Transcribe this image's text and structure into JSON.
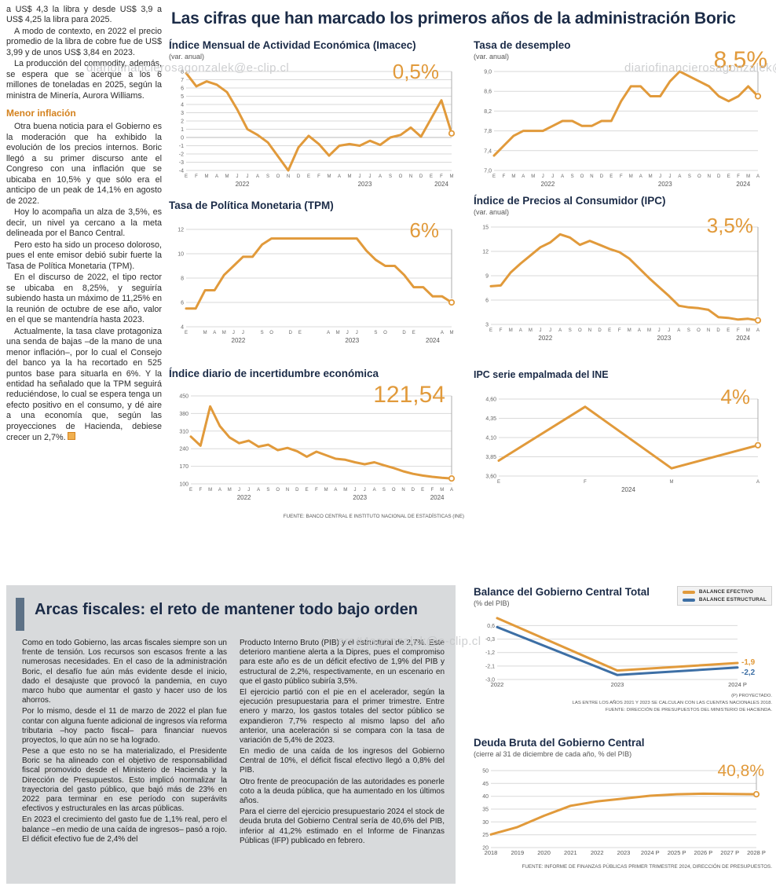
{
  "watermarks": [
    "diariofinancierosagonzalek@e-clip.cl",
    "diariofinancierosagonzalek@e-clip.cl",
    "ero#4agonzalek@e-clip.cl"
  ],
  "left_column": {
    "paragraphs": [
      "a US$ 4,3 la libra y desde US$ 3,9 a US$ 4,25 la libra para 2025.",
      "A modo de contexto, en 2022 el precio promedio de la libra de cobre fue de US$ 3,99 y de unos US$ 3,84 en 2023.",
      "La producción del commodity, además, se espera que se acerque a los 6 millones de toneladas en 2025, según la ministra de Minería, Aurora Williams."
    ],
    "subhead": "Menor inflación",
    "paragraphs2": [
      "Otra buena noticia para el Gobierno es la moderación que ha exhibido la evolución de los precios internos. Boric llegó a su primer discurso ante el Congreso con una inflación que se ubicaba en 10,5% y que sólo era el anticipo de un peak de 14,1% en agosto de 2022.",
      "Hoy lo acompaña un alza de 3,5%, es decir, un nivel ya cercano a la meta delineada por el Banco Central.",
      "Pero esto ha sido un proceso doloroso, pues el ente emisor debió subir fuerte la Tasa de Política Monetaria (TPM).",
      "En el discurso de 2022, el tipo rector se ubicaba en 8,25%, y seguiría subiendo hasta un máximo de 11,25% en la reunión de octubre de ese año, valor en el que se mantendría hasta 2023.",
      "Actualmente, la tasa clave protagoniza una senda de bajas –de la mano de una menor inflación–, por lo cual el Consejo del banco ya la ha recortado en 525 puntos base para situarla en 6%. Y la entidad ha señalado que la TPM seguirá reduciéndose, lo cual se espera tenga un efecto positivo en el consumo, y dé aire a una economía que, según las proyecciones de Hacienda, debiese crecer un 2,7%."
    ]
  },
  "main": {
    "headline": "Las cifras que han marcado los primeros años de la administración Boric",
    "source_ine": "FUENTE: BANCO CENTRAL E INSTITUTO NACIONAL DE ESTADÍSTICAS (INE)"
  },
  "fiscal": {
    "title": "Arcas fiscales: el reto de mantener todo bajo orden",
    "col1": [
      "Como en todo Gobierno, las arcas fiscales siempre son un frente de tensión. Los recursos son escasos frente a las numerosas necesidades. En el caso de la administración Boric, el desafío fue aún más evidente desde el inicio, dado el desajuste que provocó la pandemia, en cuyo marco hubo que aumentar el gasto y hacer uso de los ahorros.",
      "Por lo mismo, desde el 11 de marzo de 2022 el plan fue contar con alguna fuente adicional de ingresos vía reforma tributaria –hoy pacto fiscal– para financiar nuevos proyectos, lo que aún no se ha logrado.",
      "Pese a que esto no se ha materializado, el Presidente Boric se ha alineado con el objetivo de responsabilidad fiscal promovido desde el Ministerio de Hacienda y la Dirección de Presupuestos. Esto implicó normalizar la trayectoria del gasto público, que bajó más de 23% en 2022 para terminar en ese período con superávits efectivos y estructurales en las arcas públicas.",
      "En 2023 el crecimiento del gasto fue de 1,1% real, pero el balance –en medio de una caída de ingresos– pasó a rojo. El déficit efectivo fue de 2,4% del"
    ],
    "col2": [
      "Producto Interno Bruto (PIB) y el estructural de 2,7%. Este deterioro mantiene alerta a la Dipres, pues el compromiso para este año es de un déficit efectivo de 1,9% del PIB y estructural de 2,2%, respectivamente, en un escenario en que el gasto público subiría 3,5%.",
      "El ejercicio partió con el pie en el acelerador, según la ejecución presupuestaria para el primer trimestre. Entre enero y marzo, los gastos totales del sector público se expandieron 7,7% respecto al mismo lapso del año anterior, una aceleración si se compara con la tasa de variación de 5,4% de 2023.",
      "En medio de una caída de los ingresos del Gobierno Central de 10%, el déficit fiscal efectivo llegó a 0,8% del PIB.",
      "Otro frente de preocupación de las autoridades es ponerle coto a la deuda pública, que ha aumentado en los últimos años.",
      "Para el cierre del ejercicio presupuestario 2024 el stock de deuda bruta del Gobierno Central sería de 40,6% del PIB, inferior al 41,2% estimado en el Informe de Finanzas Públicas (IFP) publicado en febrero."
    ]
  },
  "chart_data": [
    {
      "type": "line",
      "title": "Índice Mensual de Actividad Económica (Imacec)",
      "subtitle": "(var. anual)",
      "highlight": "0,5%",
      "ylim": [
        -4,
        8
      ],
      "yticks": [
        8,
        7,
        6,
        5,
        4,
        3,
        2,
        1,
        0,
        -1,
        -2,
        -3,
        -4
      ],
      "ytick_labels": [
        "8",
        "7",
        "6",
        "5",
        "4",
        "3",
        "2",
        "1",
        "0",
        "-1",
        "-2",
        "-3",
        "-4"
      ],
      "x_labels": [
        "E",
        "F",
        "M",
        "A",
        "M",
        "J",
        "J",
        "A",
        "S",
        "O",
        "N",
        "D",
        "E",
        "F",
        "M",
        "A",
        "M",
        "J",
        "J",
        "A",
        "S",
        "O",
        "N",
        "D",
        "E",
        "F",
        "M"
      ],
      "years": [
        {
          "label": "2022",
          "from": 0,
          "to": 11
        },
        {
          "label": "2023",
          "from": 12,
          "to": 23
        },
        {
          "label": "2024",
          "from": 24,
          "to": 26
        }
      ],
      "callout": true,
      "series": [
        {
          "name": "Imacec",
          "color": "#e19a3b",
          "width": 3,
          "end_marker": true,
          "values": [
            7.8,
            6.2,
            6.8,
            6.4,
            5.5,
            3.4,
            1.0,
            0.3,
            -0.6,
            -2.3,
            -4.0,
            -1.2,
            0.2,
            -0.8,
            -2.2,
            -1.0,
            -0.8,
            -1.0,
            -0.4,
            -0.9,
            0.0,
            0.3,
            1.2,
            0.1,
            2.3,
            4.5,
            0.5
          ]
        }
      ]
    },
    {
      "type": "line",
      "title": "Tasa de desempleo",
      "subtitle": "(var. anual)",
      "highlight": "8,5%",
      "ylim": [
        7.0,
        9.0
      ],
      "yticks": [
        9.0,
        8.6,
        8.2,
        7.8,
        7.4,
        7.0
      ],
      "ytick_labels": [
        "9,0",
        "8,6",
        "8,2",
        "7,8",
        "7,4",
        "7,0"
      ],
      "x_labels": [
        "E",
        "F",
        "M",
        "A",
        "M",
        "J",
        "J",
        "A",
        "S",
        "O",
        "N",
        "D",
        "E",
        "F",
        "M",
        "A",
        "M",
        "J",
        "J",
        "A",
        "S",
        "O",
        "N",
        "D",
        "E",
        "F",
        "M",
        "A"
      ],
      "years": [
        {
          "label": "2022",
          "from": 0,
          "to": 11
        },
        {
          "label": "2023",
          "from": 12,
          "to": 23
        },
        {
          "label": "2024",
          "from": 24,
          "to": 27
        }
      ],
      "callout": true,
      "series": [
        {
          "name": "Tasa de desempleo",
          "color": "#e19a3b",
          "width": 3,
          "end_marker": true,
          "values": [
            7.3,
            7.5,
            7.7,
            7.8,
            7.8,
            7.8,
            7.9,
            8.0,
            8.0,
            7.9,
            7.9,
            8.0,
            8.0,
            8.4,
            8.7,
            8.7,
            8.5,
            8.5,
            8.8,
            9.0,
            8.9,
            8.8,
            8.7,
            8.5,
            8.4,
            8.5,
            8.7,
            8.5
          ]
        }
      ]
    },
    {
      "type": "line",
      "title": "Tasa de Política Monetaria (TPM)",
      "subtitle": "",
      "highlight": "6%",
      "ylim": [
        4,
        12
      ],
      "yticks": [
        12,
        10,
        8,
        6,
        4
      ],
      "ytick_labels": [
        "12",
        "10",
        "8",
        "6",
        "4"
      ],
      "x_labels": [
        "E",
        "",
        "M",
        "A",
        "M",
        "J",
        "J",
        "",
        "S",
        "O",
        "",
        "D",
        "E",
        "",
        "",
        "A",
        "M",
        "J",
        "J",
        "",
        "S",
        "O",
        "",
        "D",
        "E",
        "",
        "",
        "A",
        "M"
      ],
      "years": [
        {
          "label": "2022",
          "from": 0,
          "to": 11
        },
        {
          "label": "2023",
          "from": 12,
          "to": 23
        },
        {
          "label": "2024",
          "from": 24,
          "to": 28
        }
      ],
      "callout": true,
      "series": [
        {
          "name": "TPM",
          "color": "#e19a3b",
          "width": 3,
          "end_marker": true,
          "values": [
            5.5,
            5.5,
            7.0,
            7.0,
            8.25,
            9.0,
            9.75,
            9.75,
            10.75,
            11.25,
            11.25,
            11.25,
            11.25,
            11.25,
            11.25,
            11.25,
            11.25,
            11.25,
            11.25,
            10.25,
            9.5,
            9.0,
            9.0,
            8.25,
            7.25,
            7.25,
            6.5,
            6.5,
            6.0
          ]
        }
      ]
    },
    {
      "type": "line",
      "title": "Índice de Precios al Consumidor (IPC)",
      "subtitle": "(var. anual)",
      "highlight": "3,5%",
      "ylim": [
        3,
        15
      ],
      "yticks": [
        15,
        12,
        9,
        6,
        3
      ],
      "ytick_labels": [
        "15",
        "12",
        "9",
        "6",
        "3"
      ],
      "x_labels": [
        "E",
        "F",
        "M",
        "A",
        "M",
        "J",
        "J",
        "A",
        "S",
        "O",
        "N",
        "D",
        "E",
        "F",
        "M",
        "A",
        "M",
        "J",
        "J",
        "A",
        "S",
        "O",
        "N",
        "D",
        "E",
        "F",
        "M",
        "A"
      ],
      "years": [
        {
          "label": "2022",
          "from": 0,
          "to": 11
        },
        {
          "label": "2023",
          "from": 12,
          "to": 23
        },
        {
          "label": "2024",
          "from": 24,
          "to": 27
        }
      ],
      "callout": true,
      "series": [
        {
          "name": "IPC",
          "color": "#e19a3b",
          "width": 3,
          "end_marker": true,
          "values": [
            7.7,
            7.8,
            9.4,
            10.5,
            11.5,
            12.5,
            13.1,
            14.1,
            13.7,
            12.8,
            13.3,
            12.8,
            12.3,
            11.9,
            11.1,
            9.9,
            8.7,
            7.6,
            6.5,
            5.3,
            5.1,
            5.0,
            4.8,
            3.9,
            3.8,
            3.6,
            3.7,
            3.5
          ]
        }
      ]
    },
    {
      "type": "line",
      "title": "Índice diario de incertidumbre económica",
      "subtitle": "",
      "highlight": "121,54",
      "ylim": [
        100,
        450
      ],
      "yticks": [
        450,
        380,
        310,
        240,
        170,
        100
      ],
      "ytick_labels": [
        "450",
        "380",
        "310",
        "240",
        "170",
        "100"
      ],
      "x_labels": [
        "E",
        "F",
        "M",
        "A",
        "M",
        "J",
        "J",
        "A",
        "S",
        "O",
        "N",
        "D",
        "E",
        "F",
        "M",
        "A",
        "M",
        "J",
        "J",
        "A",
        "S",
        "O",
        "N",
        "D",
        "E",
        "F",
        "M",
        "A"
      ],
      "years": [
        {
          "label": "2022",
          "from": 0,
          "to": 11
        },
        {
          "label": "2023",
          "from": 12,
          "to": 23
        },
        {
          "label": "2024",
          "from": 24,
          "to": 27
        }
      ],
      "callout": true,
      "series": [
        {
          "name": "Incertidumbre económica",
          "color": "#e19a3b",
          "width": 3,
          "end_marker": true,
          "values": [
            288,
            252,
            408,
            330,
            285,
            262,
            272,
            248,
            256,
            234,
            243,
            230,
            208,
            228,
            214,
            200,
            196,
            186,
            178,
            186,
            174,
            163,
            150,
            140,
            133,
            128,
            124,
            121.54
          ]
        }
      ]
    },
    {
      "type": "line",
      "title": "IPC serie empalmada del INE",
      "subtitle": "",
      "highlight": "4%",
      "ylim": [
        3.6,
        4.6
      ],
      "yticks": [
        4.6,
        4.35,
        4.1,
        3.85,
        3.6
      ],
      "ytick_labels": [
        "4,60",
        "4,35",
        "4,10",
        "3,85",
        "3,60"
      ],
      "x_labels": [
        "E",
        "F",
        "M",
        "A"
      ],
      "years": [
        {
          "label": "2024",
          "from": 0,
          "to": 3
        }
      ],
      "callout": true,
      "series": [
        {
          "name": "IPC serie empalmada",
          "color": "#e19a3b",
          "width": 3,
          "end_marker": true,
          "values": [
            3.8,
            4.5,
            3.7,
            4.0
          ]
        }
      ]
    },
    {
      "type": "line",
      "title": "Balance del Gobierno Central Total",
      "subtitle": "(% del PIB)",
      "ylim": [
        -3.0,
        1.2
      ],
      "yticks": [
        0.6,
        -0.3,
        -1.2,
        -2.1,
        -3.0
      ],
      "ytick_labels": [
        "0,6",
        "-0,3",
        "-1,2",
        "-2,1",
        "-3,0"
      ],
      "x_labels": [
        "2022",
        "2023",
        "2024 P"
      ],
      "callout": false,
      "series": [
        {
          "name": "BALANCE EFECTIVO",
          "color": "#e19a3b",
          "width": 3,
          "end_marker": false,
          "end_label": "-1,9",
          "end_label_dy": 2,
          "values": [
            1.1,
            -2.4,
            -1.9
          ]
        },
        {
          "name": "BALANCE ESTRUCTURAL",
          "color": "#3d6fa5",
          "width": 3,
          "end_marker": false,
          "end_label": "-2,2",
          "end_label_dy": 9,
          "values": [
            0.5,
            -2.7,
            -2.2
          ]
        }
      ],
      "notes": [
        "(P) PROYECTADO.",
        "LAS ENTRE LOS AÑOS 2021 Y 2023 SE CALCULAN  CON LAS CUENTAS NACIONALES 2018.",
        "FUENTE: DIRECCIÓN DE PRESUPUESTOS DEL MINISTERIO DE HACIENDA."
      ]
    },
    {
      "type": "line",
      "title": "Deuda Bruta del Gobierno Central",
      "subtitle": "(cierre al 31 de diciembre de cada año, % del PIB)",
      "highlight": "40,8%",
      "ylim": [
        20,
        50
      ],
      "yticks": [
        50,
        45,
        40,
        35,
        30,
        25,
        20
      ],
      "ytick_labels": [
        "50",
        "45",
        "40",
        "35",
        "30",
        "25",
        "20"
      ],
      "x_labels": [
        "2018",
        "2019",
        "2020",
        "2021",
        "2022",
        "2023",
        "2024 P",
        "2025 P",
        "2026 P",
        "2027 P",
        "2028 P"
      ],
      "callout": true,
      "series": [
        {
          "name": "Deuda bruta",
          "color": "#e19a3b",
          "width": 3,
          "end_marker": true,
          "values": [
            25.1,
            28.0,
            32.4,
            36.3,
            38.0,
            39.1,
            40.2,
            40.8,
            41.0,
            40.9,
            40.8
          ]
        }
      ],
      "source": "FUENTE: INFORME DE FINANZAS PÚBLICAS PRIMER TRIMESTRE 2024, DIRECCIÓN DE PRESUPUESTOS."
    }
  ]
}
